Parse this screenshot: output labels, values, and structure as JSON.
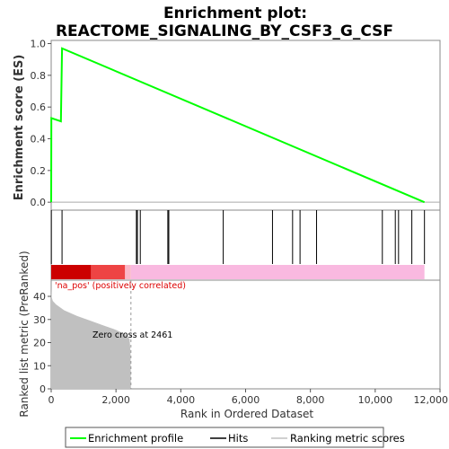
{
  "chart_data": {
    "type": "line",
    "title": "Enrichment plot:",
    "subtitle": "REACTOME_SIGNALING_BY_CSF3_G_CSF",
    "xlabel": "Rank in Ordered Dataset",
    "xlim": [
      0,
      12000
    ],
    "x_ticks": [
      0,
      2000,
      4000,
      6000,
      8000,
      10000,
      12000
    ],
    "x_tick_labels": [
      "0",
      "2,000",
      "4,000",
      "6,000",
      "8,000",
      "10,000",
      "12,000"
    ],
    "es_panel": {
      "ylabel": "Enrichment score (ES)",
      "ylim": [
        -0.05,
        1.02
      ],
      "y_ticks": [
        0.0,
        0.2,
        0.4,
        0.6,
        0.8,
        1.0
      ],
      "y_tick_labels": [
        "0.0",
        "0.2",
        "0.4",
        "0.6",
        "0.8",
        "1.0"
      ],
      "series": [
        {
          "name": "Enrichment profile",
          "color": "#00ff00",
          "x": [
            0,
            5,
            300,
            335,
            11520
          ],
          "y": [
            0.0,
            0.53,
            0.51,
            0.97,
            0.0
          ]
        }
      ]
    },
    "hits": {
      "name": "Hits",
      "positions": [
        5,
        335,
        2630,
        2660,
        2750,
        3600,
        3630,
        5310,
        6830,
        7450,
        7680,
        8190,
        10220,
        10620,
        10720,
        11130,
        11520
      ]
    },
    "ranking_bar": {
      "segments": [
        {
          "from": 0,
          "to": 1230,
          "color": "#cc0000"
        },
        {
          "from": 1230,
          "to": 2280,
          "color": "#ee4444"
        },
        {
          "from": 2280,
          "to": 2461,
          "color": "#fbb7c8"
        },
        {
          "from": 2461,
          "to": 11520,
          "color": "#f9b9e0"
        }
      ],
      "label": "'na_pos' (positively correlated)",
      "label_color": "#dd0000"
    },
    "metric_panel": {
      "name": "Ranking metric scores",
      "ylabel": "Ranked list metric (PreRanked)",
      "ylim": [
        0,
        47
      ],
      "y_ticks": [
        0,
        10,
        20,
        30,
        40
      ],
      "y_tick_labels": [
        "0",
        "10",
        "20",
        "30",
        "40"
      ],
      "fill_color": "#c0c0c0",
      "x": [
        0,
        10,
        50,
        150,
        400,
        800,
        1200,
        1600,
        2000,
        2300,
        2420,
        2450,
        2461
      ],
      "y": [
        44,
        40,
        38,
        36.5,
        34,
        31.5,
        29.5,
        27.5,
        25.5,
        23.5,
        21.5,
        16,
        0
      ],
      "zero_cross": 2461,
      "annotation": "Zero cross at 2461"
    },
    "legend": {
      "position": "bottom",
      "items": [
        {
          "label": "Enrichment profile",
          "color": "#00ff00"
        },
        {
          "label": "Hits",
          "color": "#000000"
        },
        {
          "label": "Ranking metric scores",
          "color": "#c0c0c0"
        }
      ]
    }
  }
}
